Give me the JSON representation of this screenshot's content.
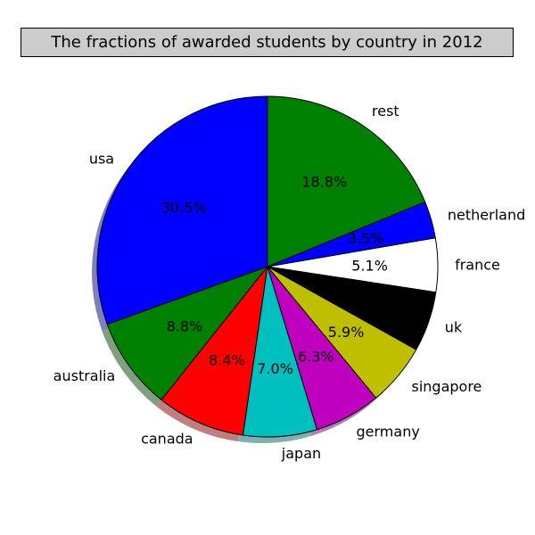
{
  "chart_data": {
    "type": "pie",
    "title": "The fractions of awarded students by country in 2012",
    "start_angle_deg": 90,
    "direction": "counterclockwise",
    "shadow": true,
    "slices": [
      {
        "label": "usa",
        "pct_label": "30.5%",
        "value": 30.5,
        "color": "#0000ff"
      },
      {
        "label": "australia",
        "pct_label": "8.8%",
        "value": 8.8,
        "color": "#008000"
      },
      {
        "label": "canada",
        "pct_label": "8.4%",
        "value": 8.4,
        "color": "#ff0000"
      },
      {
        "label": "japan",
        "pct_label": "7.0%",
        "value": 7.0,
        "color": "#00bfbf"
      },
      {
        "label": "germany",
        "pct_label": "6.3%",
        "value": 6.3,
        "color": "#bf00bf"
      },
      {
        "label": "singapore",
        "pct_label": "5.9%",
        "value": 5.9,
        "color": "#bfbf00"
      },
      {
        "label": "uk",
        "pct_label": "",
        "value": 5.7,
        "color": "#000000"
      },
      {
        "label": "france",
        "pct_label": "5.1%",
        "value": 5.1,
        "color": "#ffffff"
      },
      {
        "label": "netherland",
        "pct_label": "3.5%",
        "value": 3.5,
        "color": "#0000ff"
      },
      {
        "label": "rest",
        "pct_label": "18.8%",
        "value": 18.8,
        "color": "#008000"
      }
    ]
  }
}
